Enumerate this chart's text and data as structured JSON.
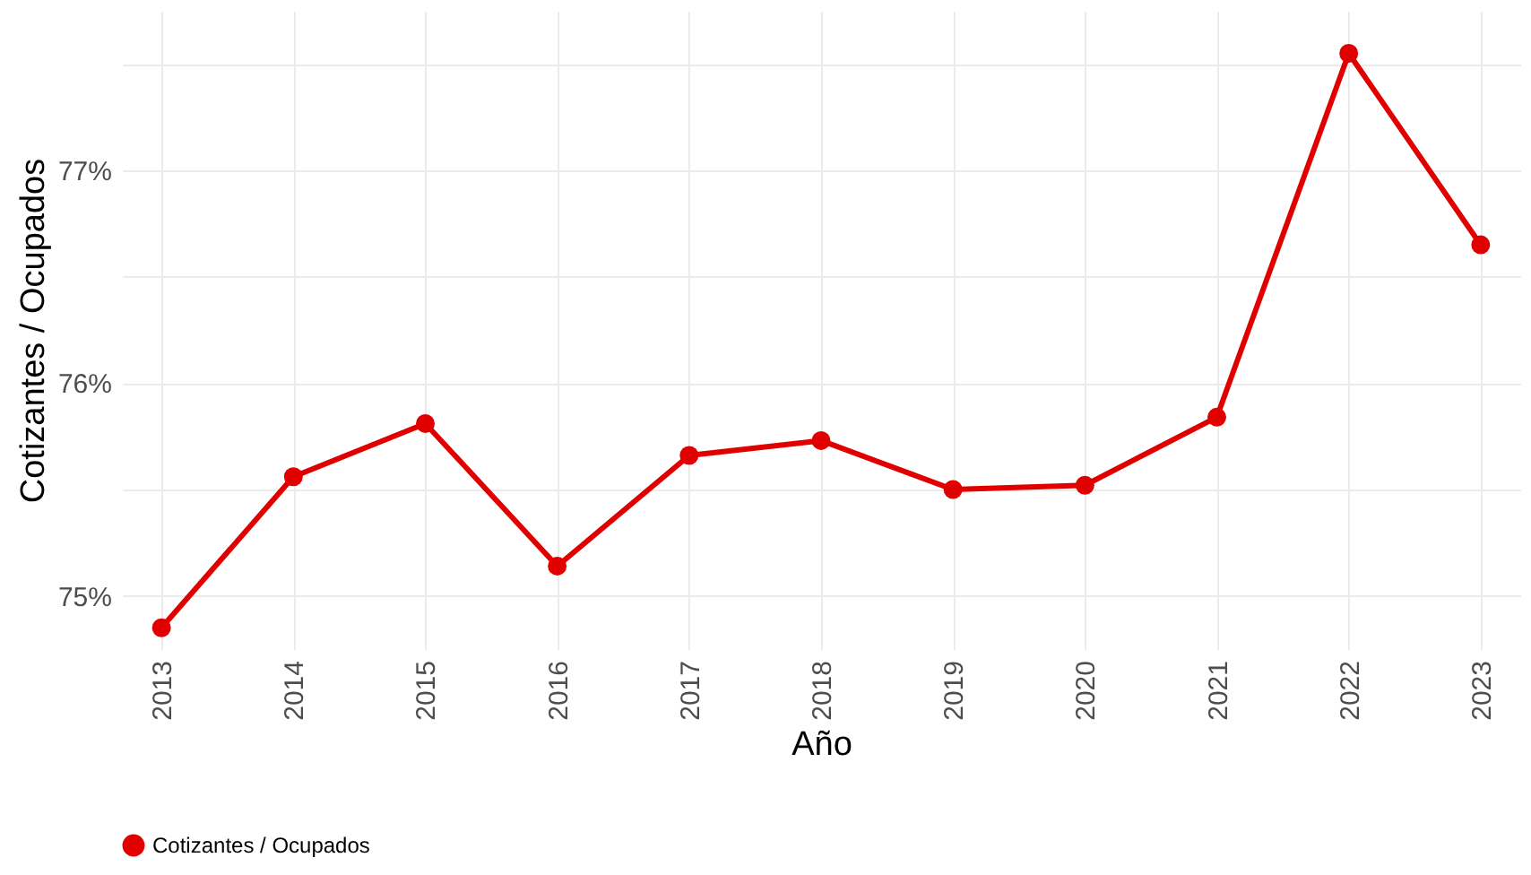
{
  "chart_data": {
    "type": "line",
    "xlabel": "Año",
    "ylabel": "Cotizantes / Ocupados",
    "categories": [
      "2013",
      "2014",
      "2015",
      "2016",
      "2017",
      "2018",
      "2019",
      "2020",
      "2021",
      "2022",
      "2023"
    ],
    "series": [
      {
        "name": "Cotizantes / Ocupados",
        "color": "#e00000",
        "values": [
          74.85,
          75.56,
          75.81,
          75.14,
          75.66,
          75.73,
          75.5,
          75.52,
          75.84,
          77.55,
          76.65
        ]
      }
    ],
    "ylim": [
      74.75,
      77.75
    ],
    "yticks": [
      {
        "value": 75,
        "label": "75%"
      },
      {
        "value": 75.5,
        "label": null
      },
      {
        "value": 76,
        "label": "76%"
      },
      {
        "value": 76.5,
        "label": null
      },
      {
        "value": 77,
        "label": "77%"
      },
      {
        "value": 77.5,
        "label": null
      }
    ],
    "grid": true,
    "legend": "bottom",
    "marker": "circle",
    "line_style": "solid"
  }
}
